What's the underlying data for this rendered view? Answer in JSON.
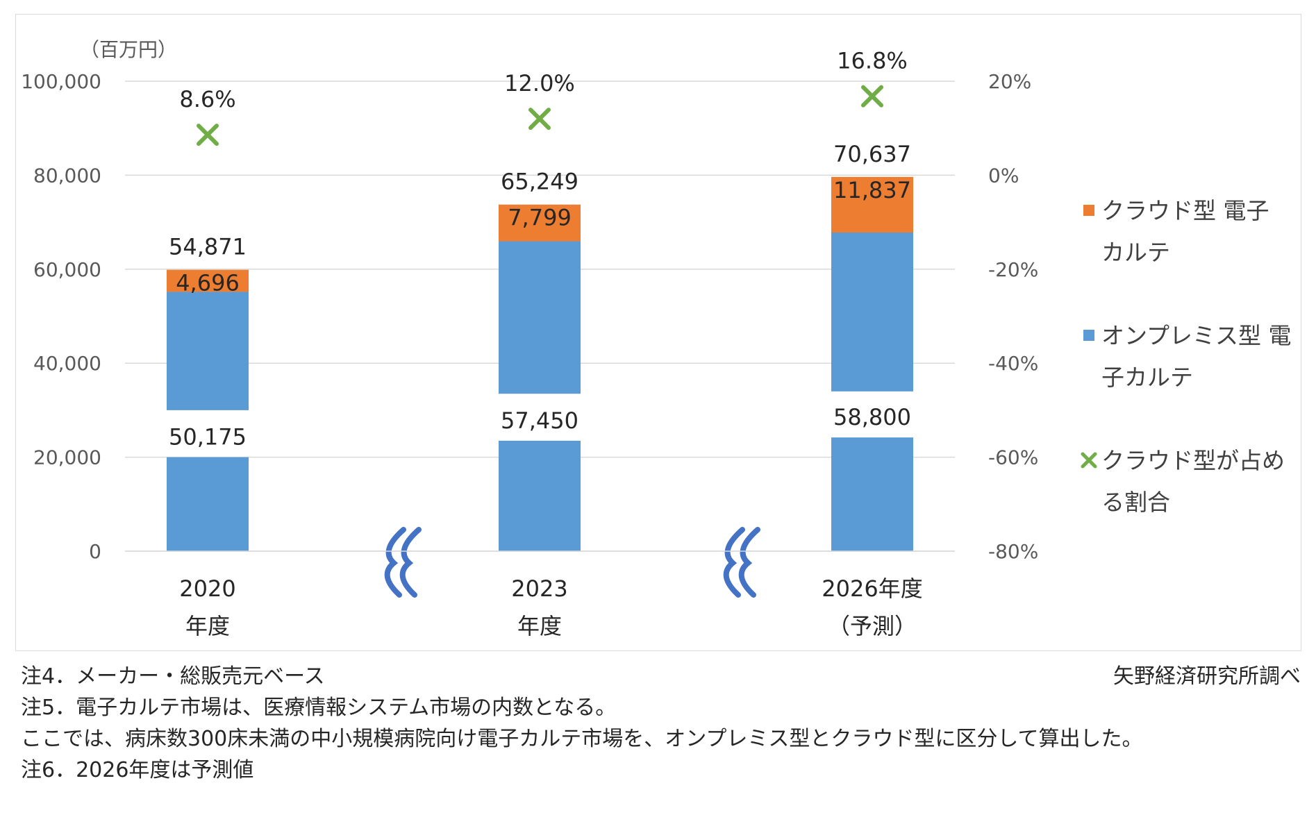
{
  "chart_data": {
    "type": "bar",
    "stacked": true,
    "y_unit_label": "（百万円）",
    "categories": [
      [
        "2020",
        "年度"
      ],
      [
        "2023",
        "年度"
      ],
      [
        "2026年度",
        "（予測）"
      ]
    ],
    "series": [
      {
        "name": "オンプレミス型 電子カルテ",
        "values": [
          50175,
          57450,
          58800
        ],
        "color": "#5b9bd5",
        "axis": "left"
      },
      {
        "name": "クラウド型 電子カルテ",
        "values": [
          4696,
          7799,
          11837
        ],
        "color": "#ed7d31",
        "axis": "left"
      },
      {
        "name": "クラウド型が占める割合",
        "type": "scatter",
        "marker": "x",
        "values": [
          8.6,
          12.0,
          16.8
        ],
        "labels": [
          "8.6%",
          "12.0%",
          "16.8%"
        ],
        "color": "#70ad47",
        "axis": "right"
      }
    ],
    "totals": [
      54871,
      65249,
      70637
    ],
    "value_labels": {
      "onpremise": [
        "50,175",
        "57,450",
        "58,800"
      ],
      "cloud": [
        "4,696",
        "7,799",
        "11,837"
      ],
      "totals": [
        "54,871",
        "65,249",
        "70,637"
      ]
    },
    "y_axis_left": {
      "ylim": [
        0,
        100000
      ],
      "ticks": [
        0,
        20000,
        40000,
        60000,
        80000,
        100000
      ],
      "tick_labels": [
        "0",
        "20,000",
        "40,000",
        "60,000",
        "80,000",
        "100,000"
      ]
    },
    "y_axis_right": {
      "ylim": [
        -80,
        20
      ],
      "ticks": [
        -80,
        -60,
        -40,
        -20,
        0,
        20
      ],
      "tick_labels": [
        "-80%",
        "-60%",
        "-40%",
        "-20%",
        "0%",
        "20%"
      ]
    },
    "axis_break": true,
    "break_symbol_color": "#4472c4",
    "legend_position": "right",
    "legend": [
      {
        "lines": [
          "クラウド型 電子",
          "カルテ"
        ],
        "marker": "square",
        "color": "#ed7d31"
      },
      {
        "lines": [
          "オンプレミス型 電",
          "子カルテ"
        ],
        "marker": "square",
        "color": "#5b9bd5"
      },
      {
        "lines": [
          "クラウド型が占め",
          "る割合"
        ],
        "marker": "x",
        "color": "#70ad47"
      }
    ],
    "grid": true
  },
  "notes": [
    "注4．メーカー・総販売元ベース",
    "注5．電子カルテ市場は、医療情報システム市場の内数となる。",
    "ここでは、病床数300床未満の中小規模病院向け電子カルテ市場を、オンプレミス型とクラウド型に区分して算出した。",
    "注6．2026年度は予測値"
  ],
  "source": "矢野経済研究所調べ"
}
